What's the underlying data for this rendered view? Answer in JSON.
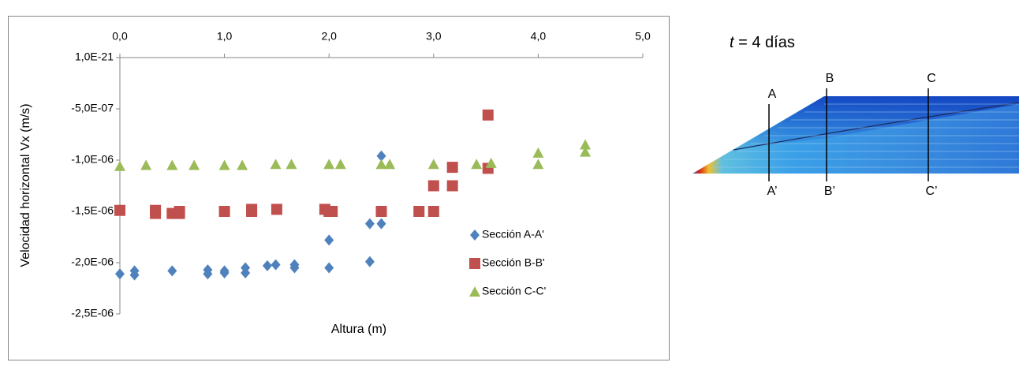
{
  "chart_data": {
    "type": "scatter",
    "x_label": "Altura (m)",
    "y_label": "Velocidad horizontal Vx (m/s)",
    "xlim": [
      0,
      5
    ],
    "ylim": [
      -2.5e-06,
      1e-21
    ],
    "x_axis_position": "top",
    "legend_position": "right",
    "xticks": [
      {
        "value": 0,
        "label": "0,0"
      },
      {
        "value": 1,
        "label": "1,0"
      },
      {
        "value": 2,
        "label": "2,0"
      },
      {
        "value": 3,
        "label": "3,0"
      },
      {
        "value": 4,
        "label": "4,0"
      },
      {
        "value": 5,
        "label": "5,0"
      }
    ],
    "yticks": [
      {
        "value": 1e-21,
        "label": "1,0E-21"
      },
      {
        "value": -5e-07,
        "label": "-5,0E-07"
      },
      {
        "value": -1e-06,
        "label": "-1,0E-06"
      },
      {
        "value": -1.5e-06,
        "label": "-1,5E-06"
      },
      {
        "value": -2e-06,
        "label": "-2,0E-06"
      },
      {
        "value": -2.5e-06,
        "label": "-2,5E-06"
      }
    ],
    "series": [
      {
        "name": "Sección A-A'",
        "color": "#4f81bd",
        "marker": "diamond",
        "x": [
          0,
          0.14,
          0.14,
          0.5,
          0.84,
          0.84,
          1.0,
          1.0,
          1.2,
          1.2,
          1.41,
          1.49,
          1.67,
          1.67,
          2.0,
          2.0,
          2.39,
          2.39,
          2.5,
          2.5
        ],
        "values": [
          -2.11e-06,
          -2.08e-06,
          -2.12e-06,
          -2.08e-06,
          -2.07e-06,
          -2.11e-06,
          -2.1e-06,
          -2.08e-06,
          -2.05e-06,
          -2.1e-06,
          -2.03e-06,
          -2.02e-06,
          -2.02e-06,
          -2.05e-06,
          -2.05e-06,
          -1.78e-06,
          -1.99e-06,
          -1.62e-06,
          -1.62e-06,
          -9.6e-07
        ]
      },
      {
        "name": "Sección B-B'",
        "color": "#c0504d",
        "marker": "square",
        "x": [
          0,
          0.34,
          0.34,
          0.5,
          0.57,
          0.57,
          1.0,
          1.26,
          1.26,
          1.5,
          1.96,
          2.0,
          2.03,
          2.5,
          2.86,
          3.0,
          3.0,
          3.18,
          3.18,
          3.52,
          3.52
        ],
        "values": [
          -1.49e-06,
          -1.52e-06,
          -1.49e-06,
          -1.52e-06,
          -1.5e-06,
          -1.52e-06,
          -1.5e-06,
          -1.48e-06,
          -1.5e-06,
          -1.48e-06,
          -1.48e-06,
          -1.5e-06,
          -1.5e-06,
          -1.5e-06,
          -1.5e-06,
          -1.5e-06,
          -1.25e-06,
          -1.25e-06,
          -1.07e-06,
          -1.08e-06,
          -5.6e-07
        ]
      },
      {
        "name": "Sección C-C'",
        "color": "#9bbb59",
        "marker": "triangle",
        "x": [
          0,
          0.25,
          0.5,
          0.71,
          1.0,
          1.17,
          1.49,
          1.64,
          2.0,
          2.11,
          2.5,
          2.58,
          3.0,
          3.41,
          3.55,
          4.0,
          4.0,
          4.45,
          4.45
        ],
        "values": [
          -1.06e-06,
          -1.05e-06,
          -1.05e-06,
          -1.05e-06,
          -1.05e-06,
          -1.05e-06,
          -1.04e-06,
          -1.04e-06,
          -1.04e-06,
          -1.04e-06,
          -1.04e-06,
          -1.04e-06,
          -1.04e-06,
          -1.04e-06,
          -1.03e-06,
          -1.04e-06,
          -9.3e-07,
          -9.2e-07,
          -8.5e-07
        ]
      }
    ]
  },
  "diagram": {
    "title_variable": "t",
    "title_rest": "= 4 días",
    "sections": [
      {
        "top": "A",
        "bottom": "A’"
      },
      {
        "top": "B",
        "bottom": "B’"
      },
      {
        "top": "C",
        "bottom": "C’"
      }
    ]
  }
}
